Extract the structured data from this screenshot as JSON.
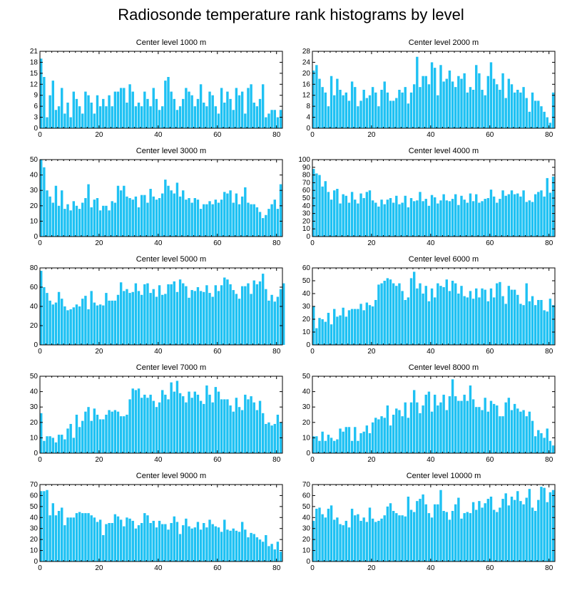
{
  "title": "Radiosonde temperature rank histograms by level",
  "bar_color": "#1ec1f3",
  "chart_data": [
    {
      "type": "bar",
      "title": "Center level 1000 m",
      "xlim": [
        0,
        82
      ],
      "ylim": [
        0,
        21
      ],
      "xticks": [
        0,
        20,
        40,
        60,
        80
      ],
      "yticks": [
        0,
        3,
        6,
        9,
        12,
        15,
        18,
        21
      ],
      "values": [
        19,
        14,
        3,
        9,
        13,
        5,
        6,
        11,
        4,
        7,
        3,
        10,
        8,
        6,
        4,
        10,
        9,
        7,
        4,
        9,
        6,
        8,
        6,
        9,
        6,
        10,
        10,
        11,
        11,
        7,
        12,
        10,
        6,
        7,
        6,
        10,
        8,
        6,
        11,
        8,
        5,
        6,
        13,
        14,
        10,
        8,
        5,
        6,
        8,
        11,
        10,
        9,
        6,
        8,
        12,
        7,
        6,
        10,
        9,
        6,
        4,
        11,
        7,
        10,
        8,
        5,
        11,
        9,
        10,
        4,
        11,
        12,
        7,
        6,
        8,
        12,
        3,
        4,
        5,
        5,
        3,
        5
      ]
    },
    {
      "type": "bar",
      "title": "Center level 2000 m",
      "xlim": [
        0,
        82
      ],
      "ylim": [
        0,
        28
      ],
      "xticks": [
        0,
        20,
        40,
        60,
        80
      ],
      "yticks": [
        0,
        4,
        8,
        12,
        16,
        20,
        24,
        28
      ],
      "values": [
        21,
        23,
        18,
        15,
        13,
        8,
        19,
        12,
        18,
        14,
        12,
        13,
        10,
        17,
        15,
        8,
        10,
        14,
        11,
        12,
        15,
        13,
        8,
        14,
        17,
        13,
        10,
        10,
        11,
        14,
        13,
        15,
        9,
        13,
        16,
        26,
        15,
        19,
        19,
        16,
        24,
        22,
        12,
        23,
        17,
        18,
        21,
        17,
        15,
        19,
        18,
        20,
        13,
        15,
        14,
        23,
        20,
        14,
        12,
        19,
        24,
        18,
        16,
        14,
        20,
        11,
        18,
        16,
        13,
        14,
        13,
        15,
        11,
        6,
        13,
        10,
        10,
        8,
        6,
        4,
        2,
        13
      ]
    },
    {
      "type": "bar",
      "title": "Center level 3000 m",
      "xlim": [
        0,
        82
      ],
      "ylim": [
        0,
        50
      ],
      "xticks": [
        0,
        20,
        40,
        60,
        80
      ],
      "yticks": [
        0,
        10,
        20,
        30,
        40,
        50
      ],
      "values": [
        50,
        45,
        30,
        26,
        22,
        33,
        20,
        30,
        18,
        21,
        17,
        23,
        20,
        18,
        22,
        25,
        34,
        19,
        24,
        25,
        17,
        20,
        20,
        17,
        23,
        22,
        33,
        30,
        33,
        26,
        25,
        24,
        26,
        19,
        27,
        27,
        22,
        31,
        26,
        24,
        25,
        28,
        37,
        33,
        30,
        28,
        35,
        26,
        30,
        24,
        25,
        22,
        25,
        24,
        18,
        21,
        21,
        23,
        21,
        24,
        22,
        24,
        29,
        28,
        30,
        22,
        28,
        21,
        26,
        32,
        22,
        21,
        21,
        19,
        16,
        12,
        14,
        18,
        21,
        24,
        18,
        34
      ]
    },
    {
      "type": "bar",
      "title": "Center level 4000 m",
      "xlim": [
        0,
        82
      ],
      "ylim": [
        0,
        100
      ],
      "xticks": [
        0,
        20,
        40,
        60,
        80
      ],
      "yticks": [
        0,
        10,
        20,
        30,
        40,
        50,
        60,
        70,
        80,
        90,
        100
      ],
      "values": [
        88,
        82,
        80,
        65,
        72,
        58,
        48,
        60,
        62,
        43,
        55,
        53,
        44,
        58,
        48,
        43,
        56,
        50,
        58,
        60,
        47,
        44,
        39,
        48,
        42,
        48,
        50,
        44,
        53,
        42,
        44,
        53,
        38,
        50,
        46,
        47,
        58,
        46,
        49,
        40,
        54,
        51,
        43,
        47,
        55,
        47,
        46,
        49,
        55,
        41,
        53,
        48,
        44,
        56,
        46,
        55,
        44,
        46,
        49,
        50,
        61,
        52,
        44,
        49,
        60,
        53,
        55,
        60,
        55,
        56,
        52,
        60,
        45,
        47,
        45,
        55,
        58,
        60,
        52,
        76,
        57,
        78
      ]
    },
    {
      "type": "bar",
      "title": "Center level 5000 m",
      "xlim": [
        0,
        82
      ],
      "ylim": [
        0,
        80
      ],
      "xticks": [
        0,
        20,
        40,
        60,
        80
      ],
      "yticks": [
        0,
        20,
        40,
        60,
        80
      ],
      "values": [
        77,
        60,
        54,
        46,
        42,
        44,
        55,
        48,
        40,
        36,
        37,
        39,
        42,
        40,
        48,
        51,
        37,
        56,
        44,
        41,
        42,
        41,
        54,
        46,
        46,
        46,
        52,
        65,
        56,
        58,
        54,
        55,
        64,
        56,
        52,
        63,
        64,
        54,
        58,
        50,
        62,
        52,
        53,
        63,
        63,
        66,
        55,
        68,
        64,
        61,
        49,
        57,
        56,
        60,
        56,
        55,
        62,
        54,
        50,
        62,
        56,
        62,
        70,
        68,
        63,
        57,
        53,
        48,
        61,
        61,
        64,
        53,
        67,
        63,
        66,
        74,
        58,
        46,
        52,
        45,
        50,
        58,
        64
      ]
    },
    {
      "type": "bar",
      "title": "Center level 6000 m",
      "xlim": [
        0,
        82
      ],
      "ylim": [
        0,
        60
      ],
      "xticks": [
        0,
        20,
        40,
        60,
        80
      ],
      "yticks": [
        0,
        10,
        20,
        30,
        40,
        50,
        60
      ],
      "values": [
        30,
        13,
        21,
        20,
        18,
        25,
        16,
        28,
        22,
        23,
        29,
        22,
        27,
        28,
        28,
        28,
        32,
        27,
        33,
        31,
        30,
        35,
        47,
        48,
        50,
        52,
        51,
        48,
        46,
        48,
        42,
        35,
        37,
        52,
        57,
        44,
        48,
        40,
        46,
        34,
        44,
        37,
        48,
        46,
        45,
        51,
        42,
        50,
        48,
        40,
        46,
        38,
        37,
        42,
        36,
        44,
        37,
        44,
        43,
        34,
        44,
        37,
        48,
        49,
        38,
        32,
        46,
        43,
        43,
        39,
        32,
        31,
        48,
        34,
        38,
        31,
        35,
        35,
        27,
        26,
        36,
        31
      ]
    },
    {
      "type": "bar",
      "title": "Center level 7000 m",
      "xlim": [
        0,
        82
      ],
      "ylim": [
        0,
        50
      ],
      "xticks": [
        0,
        20,
        40,
        60,
        80
      ],
      "yticks": [
        0,
        10,
        20,
        30,
        40,
        50
      ],
      "values": [
        26,
        8,
        11,
        11,
        10,
        7,
        12,
        12,
        9,
        16,
        19,
        10,
        25,
        17,
        21,
        27,
        30,
        21,
        29,
        25,
        22,
        22,
        25,
        28,
        27,
        28,
        27,
        24,
        24,
        25,
        35,
        42,
        41,
        42,
        36,
        38,
        36,
        38,
        34,
        30,
        33,
        41,
        38,
        35,
        46,
        40,
        47,
        39,
        37,
        33,
        40,
        36,
        40,
        38,
        34,
        32,
        44,
        38,
        33,
        43,
        40,
        35,
        35,
        35,
        31,
        27,
        36,
        30,
        28,
        38,
        35,
        37,
        33,
        28,
        34,
        26,
        19,
        20,
        18,
        19,
        25,
        20
      ]
    },
    {
      "type": "bar",
      "title": "Center level 8000 m",
      "xlim": [
        0,
        82
      ],
      "ylim": [
        0,
        50
      ],
      "xticks": [
        0,
        20,
        40,
        60,
        80
      ],
      "yticks": [
        0,
        10,
        20,
        30,
        40,
        50
      ],
      "values": [
        11,
        11,
        8,
        14,
        8,
        12,
        10,
        8,
        9,
        16,
        14,
        17,
        17,
        8,
        17,
        8,
        13,
        14,
        18,
        13,
        20,
        23,
        22,
        24,
        23,
        31,
        18,
        25,
        29,
        28,
        24,
        33,
        23,
        33,
        41,
        33,
        26,
        31,
        38,
        40,
        27,
        38,
        31,
        33,
        38,
        28,
        37,
        48,
        37,
        34,
        34,
        38,
        34,
        44,
        35,
        30,
        30,
        28,
        36,
        27,
        34,
        32,
        31,
        24,
        24,
        33,
        36,
        28,
        32,
        29,
        27,
        28,
        24,
        27,
        21,
        11,
        15,
        13,
        10,
        16,
        8,
        5
      ]
    },
    {
      "type": "bar",
      "title": "Center level 9000 m",
      "xlim": [
        0,
        82
      ],
      "ylim": [
        0,
        70
      ],
      "xticks": [
        0,
        20,
        40,
        60,
        80
      ],
      "yticks": [
        0,
        10,
        20,
        30,
        40,
        50,
        60,
        70
      ],
      "values": [
        64,
        64,
        65,
        42,
        53,
        42,
        46,
        49,
        33,
        40,
        40,
        40,
        44,
        45,
        44,
        44,
        44,
        42,
        40,
        36,
        38,
        24,
        34,
        35,
        35,
        43,
        41,
        38,
        32,
        40,
        39,
        37,
        30,
        33,
        35,
        44,
        42,
        35,
        37,
        31,
        37,
        34,
        34,
        29,
        35,
        41,
        36,
        25,
        33,
        39,
        32,
        30,
        31,
        36,
        29,
        35,
        31,
        38,
        34,
        32,
        31,
        27,
        38,
        29,
        28,
        30,
        28,
        27,
        36,
        29,
        22,
        26,
        25,
        22,
        20,
        18,
        24,
        14,
        16,
        11,
        18,
        9
      ]
    },
    {
      "type": "bar",
      "title": "Center level 10000 m",
      "xlim": [
        0,
        82
      ],
      "ylim": [
        0,
        70
      ],
      "xticks": [
        0,
        20,
        40,
        60,
        80
      ],
      "yticks": [
        0,
        10,
        20,
        30,
        40,
        50,
        60,
        70
      ],
      "values": [
        37,
        48,
        49,
        43,
        40,
        48,
        51,
        38,
        40,
        34,
        33,
        37,
        31,
        48,
        42,
        43,
        37,
        40,
        36,
        49,
        39,
        36,
        37,
        39,
        42,
        50,
        53,
        46,
        44,
        42,
        42,
        41,
        59,
        47,
        45,
        55,
        57,
        61,
        52,
        44,
        40,
        52,
        52,
        65,
        46,
        45,
        38,
        46,
        52,
        58,
        39,
        44,
        45,
        44,
        54,
        47,
        55,
        49,
        53,
        57,
        59,
        47,
        45,
        49,
        57,
        62,
        51,
        59,
        56,
        64,
        55,
        52,
        58,
        66,
        49,
        46,
        56,
        68,
        67,
        54,
        63,
        65
      ]
    }
  ]
}
